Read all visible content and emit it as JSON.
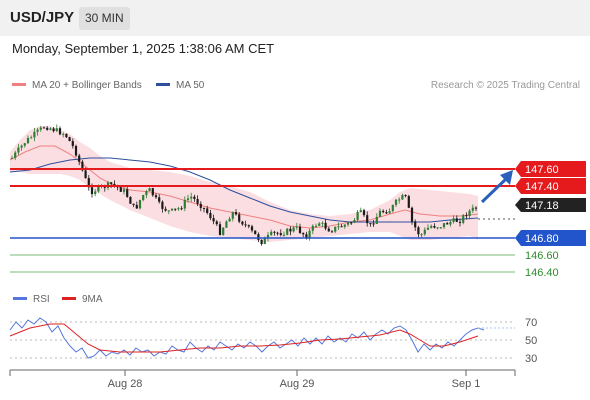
{
  "header": {
    "symbol": "USD/JPY",
    "timeframe": "30 MIN"
  },
  "datetime": "Monday, September 1, 2025 1:38:06 AM CET",
  "legend": {
    "ma20": {
      "label": "MA 20 + Bollinger Bands",
      "color": "#f08080"
    },
    "ma50": {
      "label": "MA 50",
      "color": "#2d4f9e"
    }
  },
  "copyright": "Research © 2025 Trading Central",
  "levels": {
    "r2": "147.60",
    "r1": "147.40",
    "current": "147.18",
    "pivot": "146.80",
    "s1": "146.60",
    "s2": "146.40"
  },
  "rsi_legend": {
    "rsi": {
      "label": "RSI",
      "color": "#5577dd"
    },
    "ma9": {
      "label": "9MA",
      "color": "#dd2222"
    }
  },
  "rsi_levels": {
    "l70": "70",
    "l50": "50",
    "l30": "30"
  },
  "x_axis": {
    "t1": "Aug 28",
    "t2": "Aug 29",
    "t3": "Sep 1"
  },
  "colors": {
    "up": "#2e7d32",
    "down": "#1a1a1a",
    "resistance": "#e41a1c",
    "pivot": "#2255cc",
    "support": "#55aa55"
  }
}
